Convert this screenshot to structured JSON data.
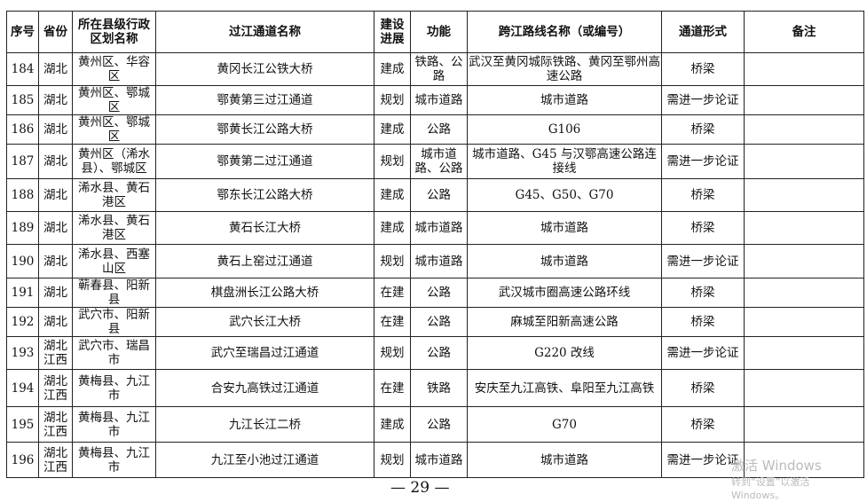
{
  "table": {
    "headers": [
      "序号",
      "省份",
      "所在县级行政区划名称",
      "过江通道名称",
      "建设进展",
      "功能",
      "跨江路线名称（或编号）",
      "通道形式",
      "备注"
    ],
    "rows": [
      {
        "no": "184",
        "province": "湖北",
        "county": "黄州区、华容区",
        "name": "黄冈长江公铁大桥",
        "status": "建成",
        "function": "铁路、公路",
        "route": "武汉至黄冈城际铁路、黄冈至鄂州高速公路",
        "form": "桥梁",
        "note": ""
      },
      {
        "no": "185",
        "province": "湖北",
        "county": "黄州区、鄂城区",
        "name": "鄂黄第三过江通道",
        "status": "规划",
        "function": "城市道路",
        "route": "城市道路",
        "form": "需进一步论证",
        "note": ""
      },
      {
        "no": "186",
        "province": "湖北",
        "county": "黄州区、鄂城区",
        "name": "鄂黄长江公路大桥",
        "status": "建成",
        "function": "公路",
        "route": "G106",
        "form": "桥梁",
        "note": ""
      },
      {
        "no": "187",
        "province": "湖北",
        "county": "黄州区（浠水县）、鄂城区",
        "name": "鄂黄第二过江通道",
        "status": "规划",
        "function": "城市道路、公路",
        "route": "城市道路、G45 与汉鄂高速公路连接线",
        "form": "需进一步论证",
        "note": ""
      },
      {
        "no": "188",
        "province": "湖北",
        "county": "浠水县、黄石港区",
        "name": "鄂东长江公路大桥",
        "status": "建成",
        "function": "公路",
        "route": "G45、G50、G70",
        "form": "桥梁",
        "note": ""
      },
      {
        "no": "189",
        "province": "湖北",
        "county": "浠水县、黄石港区",
        "name": "黄石长江大桥",
        "status": "建成",
        "function": "城市道路",
        "route": "城市道路",
        "form": "桥梁",
        "note": ""
      },
      {
        "no": "190",
        "province": "湖北",
        "county": "浠水县、西塞山区",
        "name": "黄石上窑过江通道",
        "status": "规划",
        "function": "城市道路",
        "route": "城市道路",
        "form": "需进一步论证",
        "note": ""
      },
      {
        "no": "191",
        "province": "湖北",
        "county": "蕲春县、阳新县",
        "name": "棋盘洲长江公路大桥",
        "status": "在建",
        "function": "公路",
        "route": "武汉城市圈高速公路环线",
        "form": "桥梁",
        "note": ""
      },
      {
        "no": "192",
        "province": "湖北",
        "county": "武穴市、阳新县",
        "name": "武穴长江大桥",
        "status": "在建",
        "function": "公路",
        "route": "麻城至阳新高速公路",
        "form": "桥梁",
        "note": ""
      },
      {
        "no": "193",
        "province": "湖北江西",
        "county": "武穴市、瑞昌市",
        "name": "武穴至瑞昌过江通道",
        "status": "规划",
        "function": "公路",
        "route": "G220 改线",
        "form": "需进一步论证",
        "note": ""
      },
      {
        "no": "194",
        "province": "湖北江西",
        "county": "黄梅县、九江市",
        "name": "合安九高铁过江通道",
        "status": "在建",
        "function": "铁路",
        "route": "安庆至九江高铁、阜阳至九江高铁",
        "form": "桥梁",
        "note": ""
      },
      {
        "no": "195",
        "province": "湖北江西",
        "county": "黄梅县、九江市",
        "name": "九江长江二桥",
        "status": "建成",
        "function": "公路",
        "route": "G70",
        "form": "桥梁",
        "note": ""
      },
      {
        "no": "196",
        "province": "湖北江西",
        "county": "黄梅县、九江市",
        "name": "九江至小池过江通道",
        "status": "规划",
        "function": "城市道路",
        "route": "城市道路",
        "form": "需进一步论证",
        "note": ""
      }
    ]
  },
  "footer": {
    "page_number": "— 29 —"
  },
  "watermark": {
    "line1": "激活 Windows",
    "line2": "转到“设置”以激活 Windows。"
  }
}
